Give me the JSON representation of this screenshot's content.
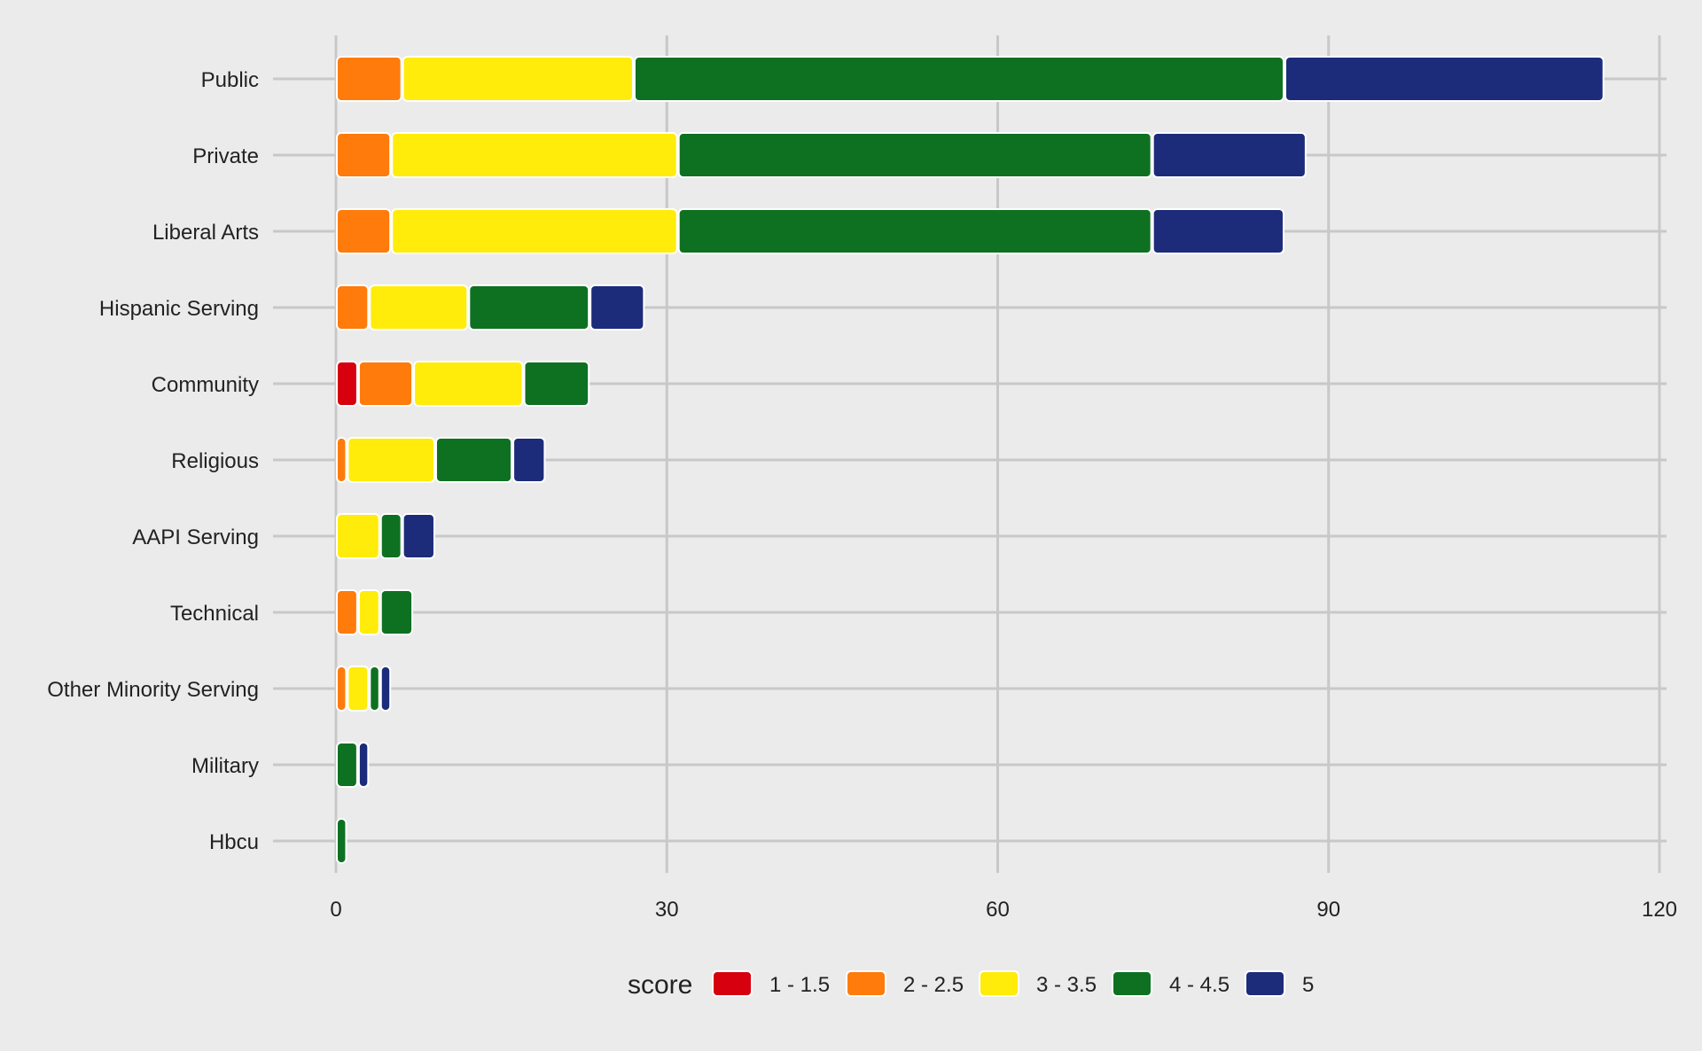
{
  "chart_data": {
    "type": "bar",
    "orientation": "horizontal",
    "stacked": true,
    "categories": [
      "Public",
      "Private",
      "Liberal Arts",
      "Hispanic Serving",
      "Community",
      "Religious",
      "AAPI Serving",
      "Technical",
      "Other Minority Serving",
      "Military",
      "Hbcu"
    ],
    "series": [
      {
        "name": "1 - 1.5",
        "color": "#d7000f",
        "values": [
          0,
          0,
          0,
          0,
          2,
          0,
          0,
          0,
          0,
          0,
          0
        ]
      },
      {
        "name": "2 - 2.5",
        "color": "#ff7b0c",
        "values": [
          6,
          5,
          5,
          3,
          5,
          1,
          0,
          2,
          1,
          0,
          0
        ]
      },
      {
        "name": "3 - 3.5",
        "color": "#ffec0a",
        "values": [
          21,
          26,
          26,
          9,
          10,
          8,
          4,
          2,
          2,
          0,
          0
        ]
      },
      {
        "name": "4 - 4.5",
        "color": "#0e7121",
        "values": [
          59,
          43,
          43,
          11,
          6,
          7,
          2,
          3,
          1,
          2,
          1
        ]
      },
      {
        "name": "5",
        "color": "#1c2c7b",
        "values": [
          29,
          14,
          12,
          5,
          0,
          3,
          3,
          0,
          1,
          1,
          0
        ]
      }
    ],
    "xlim": [
      0,
      120
    ],
    "xticks": [
      0,
      30,
      60,
      90,
      120
    ],
    "title": "",
    "xlabel": "",
    "ylabel": "",
    "legend": {
      "title": "score",
      "position": "bottom"
    },
    "grid": true
  }
}
